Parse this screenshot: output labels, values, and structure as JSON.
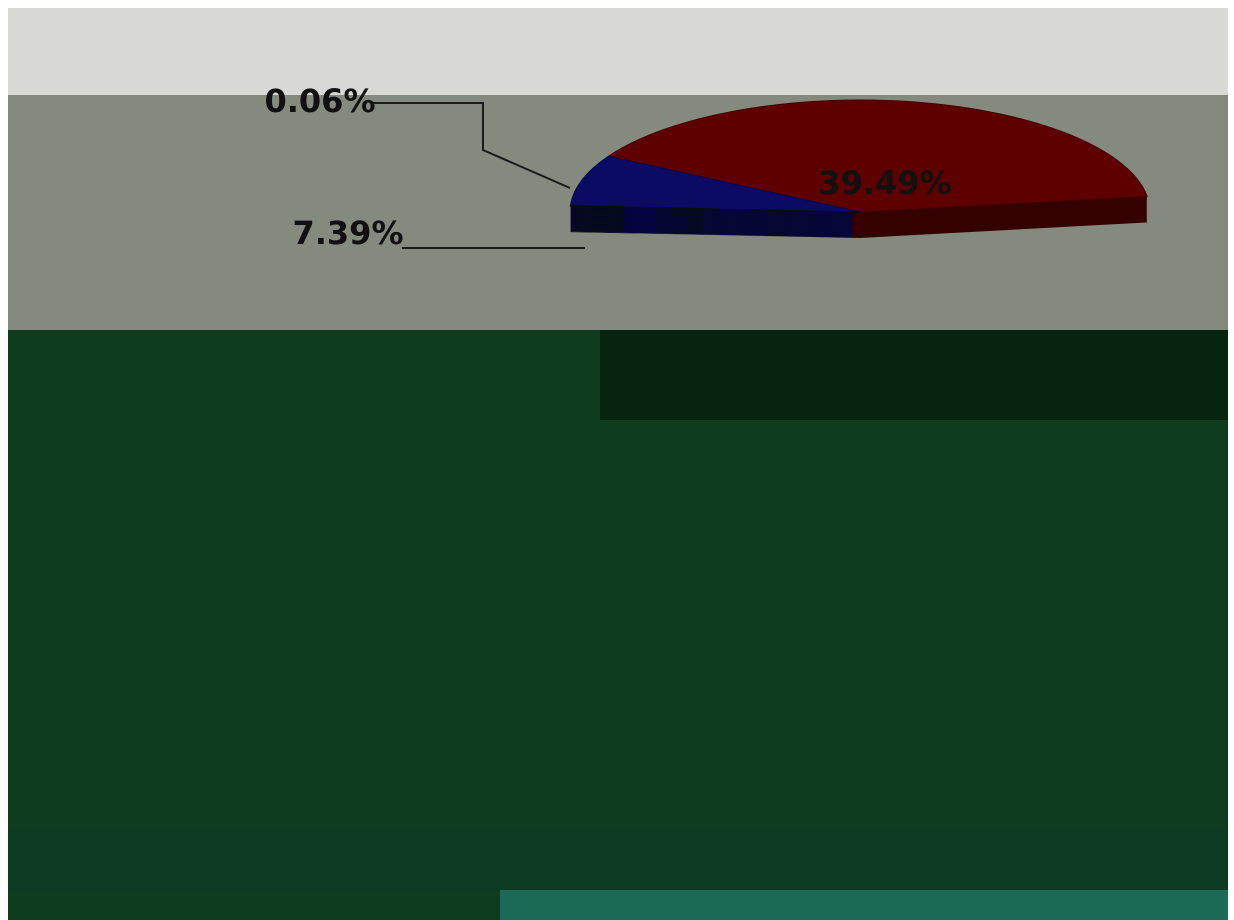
{
  "chart_data": {
    "type": "pie",
    "values": [
      39.49,
      7.39,
      0.06
    ],
    "value_labels": [
      "39.49%",
      "7.39%",
      "0.06%"
    ],
    "colors": [
      "#5e0000",
      "#0b0b66",
      "#0c130c"
    ]
  }
}
